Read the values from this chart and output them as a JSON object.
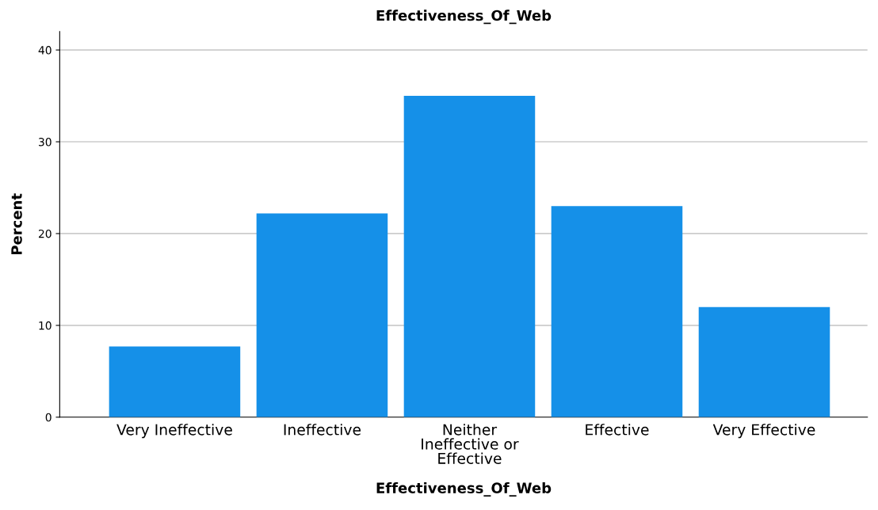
{
  "chart_data": {
    "type": "bar",
    "title": "Effectiveness_Of_Web",
    "xlabel": "Effectiveness_Of_Web",
    "ylabel": "Percent",
    "categories": [
      "Very Ineffective",
      "Ineffective",
      "Neither\nIneffective or\nEffective",
      "Effective",
      "Very Effective"
    ],
    "values": [
      7.7,
      22.2,
      35.0,
      23.0,
      12.0
    ],
    "color": "#1590e8",
    "ylim": [
      0,
      42
    ],
    "yticks": [
      0,
      10,
      20,
      30,
      40
    ],
    "grid": "y",
    "legend": false
  }
}
